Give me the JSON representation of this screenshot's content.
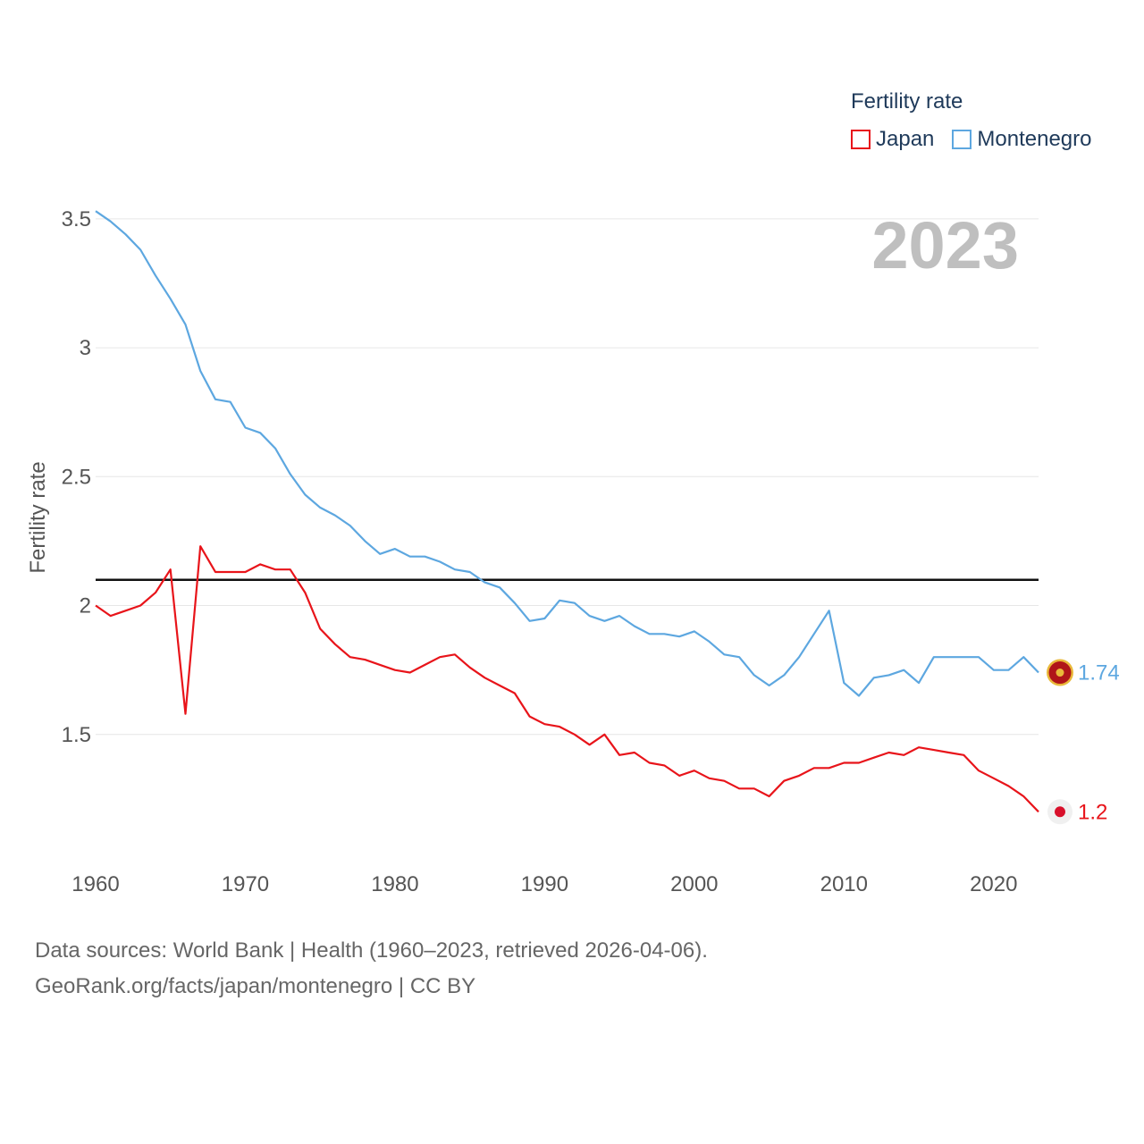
{
  "legend": {
    "title": "Fertility rate",
    "items": [
      {
        "label": "Japan",
        "color": "#e8141a"
      },
      {
        "label": "Montenegro",
        "color": "#5da7e0"
      }
    ]
  },
  "footer": {
    "line1": "Data sources: World Bank | Health (1960–2023, retrieved 2026-04-06).",
    "line2": "GeoRank.org/facts/japan/montenegro | CC BY"
  },
  "chart_data": {
    "type": "line",
    "current_year": "2023",
    "ylabel": "Fertility rate",
    "xlabel": "",
    "xlim": [
      1960,
      2023
    ],
    "ylim": [
      1.0,
      3.6
    ],
    "xticks": [
      1960,
      1970,
      1980,
      1990,
      2000,
      2010,
      2020
    ],
    "yticks": [
      1.5,
      2,
      2.5,
      3,
      3.5
    ],
    "ytick_labels": [
      "1.5",
      "2",
      "2.5",
      "3",
      "3.5"
    ],
    "reference_line": 2.1,
    "x": [
      1960,
      1961,
      1962,
      1963,
      1964,
      1965,
      1966,
      1967,
      1968,
      1969,
      1970,
      1971,
      1972,
      1973,
      1974,
      1975,
      1976,
      1977,
      1978,
      1979,
      1980,
      1981,
      1982,
      1983,
      1984,
      1985,
      1986,
      1987,
      1988,
      1989,
      1990,
      1991,
      1992,
      1993,
      1994,
      1995,
      1996,
      1997,
      1998,
      1999,
      2000,
      2001,
      2002,
      2003,
      2004,
      2005,
      2006,
      2007,
      2008,
      2009,
      2010,
      2011,
      2012,
      2013,
      2014,
      2015,
      2016,
      2017,
      2018,
      2019,
      2020,
      2021,
      2022,
      2023
    ],
    "series": [
      {
        "name": "Japan",
        "color": "#e8141a",
        "end_label": "1.2",
        "values": [
          2.0,
          1.96,
          1.98,
          2.0,
          2.05,
          2.14,
          1.58,
          2.23,
          2.13,
          2.13,
          2.13,
          2.16,
          2.14,
          2.14,
          2.05,
          1.91,
          1.85,
          1.8,
          1.79,
          1.77,
          1.75,
          1.74,
          1.77,
          1.8,
          1.81,
          1.76,
          1.72,
          1.69,
          1.66,
          1.57,
          1.54,
          1.53,
          1.5,
          1.46,
          1.5,
          1.42,
          1.43,
          1.39,
          1.38,
          1.34,
          1.36,
          1.33,
          1.32,
          1.29,
          1.29,
          1.26,
          1.32,
          1.34,
          1.37,
          1.37,
          1.39,
          1.39,
          1.41,
          1.43,
          1.42,
          1.45,
          1.44,
          1.43,
          1.42,
          1.36,
          1.33,
          1.3,
          1.26,
          1.2
        ]
      },
      {
        "name": "Montenegro",
        "color": "#5da7e0",
        "end_label": "1.74",
        "values": [
          3.53,
          3.49,
          3.44,
          3.38,
          3.28,
          3.19,
          3.09,
          2.91,
          2.8,
          2.79,
          2.69,
          2.67,
          2.61,
          2.51,
          2.43,
          2.38,
          2.35,
          2.31,
          2.25,
          2.2,
          2.22,
          2.19,
          2.19,
          2.17,
          2.14,
          2.13,
          2.09,
          2.07,
          2.01,
          1.94,
          1.95,
          2.02,
          2.01,
          1.96,
          1.94,
          1.96,
          1.92,
          1.89,
          1.89,
          1.88,
          1.9,
          1.86,
          1.81,
          1.8,
          1.73,
          1.69,
          1.73,
          1.8,
          1.89,
          1.98,
          1.7,
          1.65,
          1.72,
          1.73,
          1.75,
          1.7,
          1.8,
          1.8,
          1.8,
          1.8,
          1.75,
          1.75,
          1.8,
          1.74
        ]
      }
    ]
  }
}
